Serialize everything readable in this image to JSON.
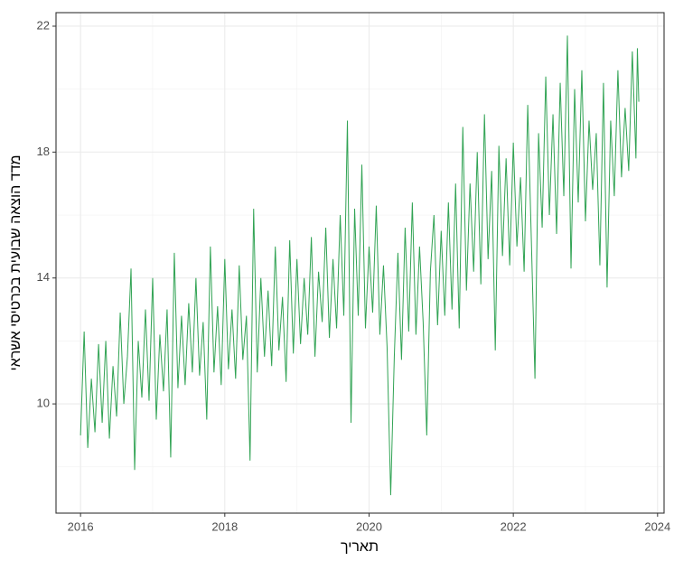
{
  "chart_data": {
    "type": "line",
    "x_label": "תאריך",
    "y_label": "מדד הוצאה שבועית בכרטיסי אשראי",
    "xlim": [
      2015.66,
      2024.09
    ],
    "ylim": [
      6.53,
      22.43
    ],
    "xticks": [
      2016,
      2018,
      2020,
      2022,
      2024
    ],
    "yticks": [
      10,
      14,
      18,
      22
    ],
    "xminorticks": [
      2017,
      2019,
      2021,
      2023
    ],
    "yminorticks": [
      8,
      12,
      16,
      20
    ],
    "grid": true,
    "series": [
      {
        "color": "#31a354",
        "x": [
          2016.0,
          2016.05,
          2016.1,
          2016.15,
          2016.2,
          2016.25,
          2016.3,
          2016.35,
          2016.4,
          2016.45,
          2016.5,
          2016.55,
          2016.6,
          2016.65,
          2016.7,
          2016.75,
          2016.8,
          2016.85,
          2016.9,
          2016.95,
          2017.0,
          2017.05,
          2017.1,
          2017.15,
          2017.2,
          2017.25,
          2017.3,
          2017.35,
          2017.4,
          2017.45,
          2017.5,
          2017.55,
          2017.6,
          2017.65,
          2017.7,
          2017.75,
          2017.8,
          2017.85,
          2017.9,
          2017.95,
          2018.0,
          2018.05,
          2018.1,
          2018.15,
          2018.2,
          2018.25,
          2018.3,
          2018.35,
          2018.4,
          2018.45,
          2018.5,
          2018.55,
          2018.6,
          2018.65,
          2018.7,
          2018.75,
          2018.8,
          2018.85,
          2018.9,
          2018.95,
          2019.0,
          2019.05,
          2019.1,
          2019.15,
          2019.2,
          2019.25,
          2019.3,
          2019.35,
          2019.4,
          2019.45,
          2019.5,
          2019.55,
          2019.6,
          2019.65,
          2019.7,
          2019.75,
          2019.8,
          2019.85,
          2019.9,
          2019.95,
          2020.0,
          2020.05,
          2020.1,
          2020.15,
          2020.2,
          2020.25,
          2020.3,
          2020.35,
          2020.4,
          2020.45,
          2020.5,
          2020.55,
          2020.6,
          2020.65,
          2020.7,
          2020.75,
          2020.8,
          2020.85,
          2020.9,
          2020.95,
          2021.0,
          2021.05,
          2021.1,
          2021.15,
          2021.2,
          2021.25,
          2021.3,
          2021.35,
          2021.4,
          2021.45,
          2021.5,
          2021.55,
          2021.6,
          2021.65,
          2021.7,
          2021.75,
          2021.8,
          2021.85,
          2021.9,
          2021.95,
          2022.0,
          2022.05,
          2022.1,
          2022.15,
          2022.2,
          2022.25,
          2022.3,
          2022.35,
          2022.4,
          2022.45,
          2022.5,
          2022.55,
          2022.6,
          2022.65,
          2022.7,
          2022.75,
          2022.8,
          2022.85,
          2022.9,
          2022.95,
          2023.0,
          2023.05,
          2023.1,
          2023.15,
          2023.2,
          2023.25,
          2023.3,
          2023.35,
          2023.4,
          2023.45,
          2023.5,
          2023.55,
          2023.6,
          2023.65,
          2023.7,
          2023.72,
          2023.74
        ],
        "values": [
          9.0,
          12.3,
          8.6,
          10.8,
          9.1,
          11.9,
          9.4,
          12.0,
          8.9,
          11.2,
          9.6,
          12.9,
          10.0,
          11.5,
          14.3,
          7.9,
          12.0,
          10.2,
          13.0,
          10.1,
          14.0,
          9.5,
          12.2,
          10.4,
          13.0,
          8.3,
          14.8,
          10.5,
          12.8,
          10.6,
          13.2,
          11.0,
          14.0,
          10.9,
          12.6,
          9.5,
          15.0,
          11.0,
          13.1,
          10.6,
          14.6,
          11.1,
          13.0,
          10.8,
          14.4,
          11.4,
          12.8,
          8.2,
          16.2,
          11.0,
          14.0,
          11.5,
          13.6,
          11.2,
          15.0,
          11.7,
          13.4,
          10.7,
          15.2,
          11.6,
          14.6,
          11.9,
          14.0,
          12.2,
          15.3,
          11.5,
          14.2,
          12.6,
          15.6,
          12.1,
          14.6,
          12.4,
          16.0,
          12.8,
          19.0,
          9.4,
          16.2,
          12.8,
          17.6,
          12.4,
          15.0,
          12.9,
          16.3,
          12.2,
          14.4,
          11.8,
          7.1,
          11.5,
          14.8,
          11.4,
          15.6,
          12.3,
          16.4,
          12.2,
          15.0,
          12.6,
          9.0,
          14.2,
          16.0,
          12.5,
          15.5,
          12.8,
          16.4,
          13.0,
          17.0,
          12.4,
          18.8,
          13.6,
          17.0,
          14.2,
          18.0,
          13.8,
          19.2,
          14.6,
          17.4,
          11.7,
          18.2,
          14.7,
          17.8,
          14.4,
          18.3,
          15.0,
          17.2,
          14.2,
          19.5,
          15.2,
          10.8,
          18.6,
          15.6,
          20.4,
          16.0,
          19.2,
          15.4,
          20.2,
          16.6,
          21.7,
          14.3,
          20.0,
          16.4,
          20.6,
          15.8,
          19.0,
          16.8,
          18.6,
          14.4,
          20.2,
          13.7,
          19.0,
          16.6,
          20.6,
          17.2,
          19.4,
          17.4,
          21.2,
          17.8,
          21.3,
          19.6
        ]
      }
    ]
  }
}
